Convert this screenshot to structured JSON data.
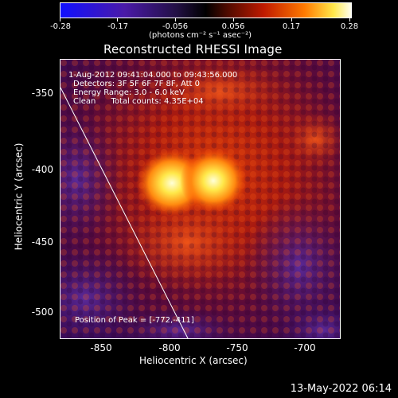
{
  "colorbar": {
    "ticks": [
      "-0.28",
      "-0.17",
      "-0.056",
      "0.056",
      "0.17",
      "0.28"
    ],
    "units": "(photons cm⁻² s⁻¹ asec⁻²)"
  },
  "title": "Reconstructed RHESSI Image",
  "info": {
    "line1": "1-Aug-2012 09:41:04.000 to 09:43:56.000",
    "line2": "Detectors: 3F 5F 6F 7F 8F, Att 0",
    "line3": "Energy Range: 3.0 - 6.0 keV",
    "line4": "Clean      Total counts: 4.35E+04",
    "peak": "Position of Peak = [-772,-411]"
  },
  "axes": {
    "ylabel": "Heliocentric Y (arcsec)",
    "xlabel": "Heliocentric X (arcsec)",
    "yticks": [
      "-350",
      "-400",
      "-450",
      "-500"
    ],
    "xticks": [
      "-850",
      "-800",
      "-750",
      "-700"
    ]
  },
  "timestamp": "13-May-2022 06:14"
}
